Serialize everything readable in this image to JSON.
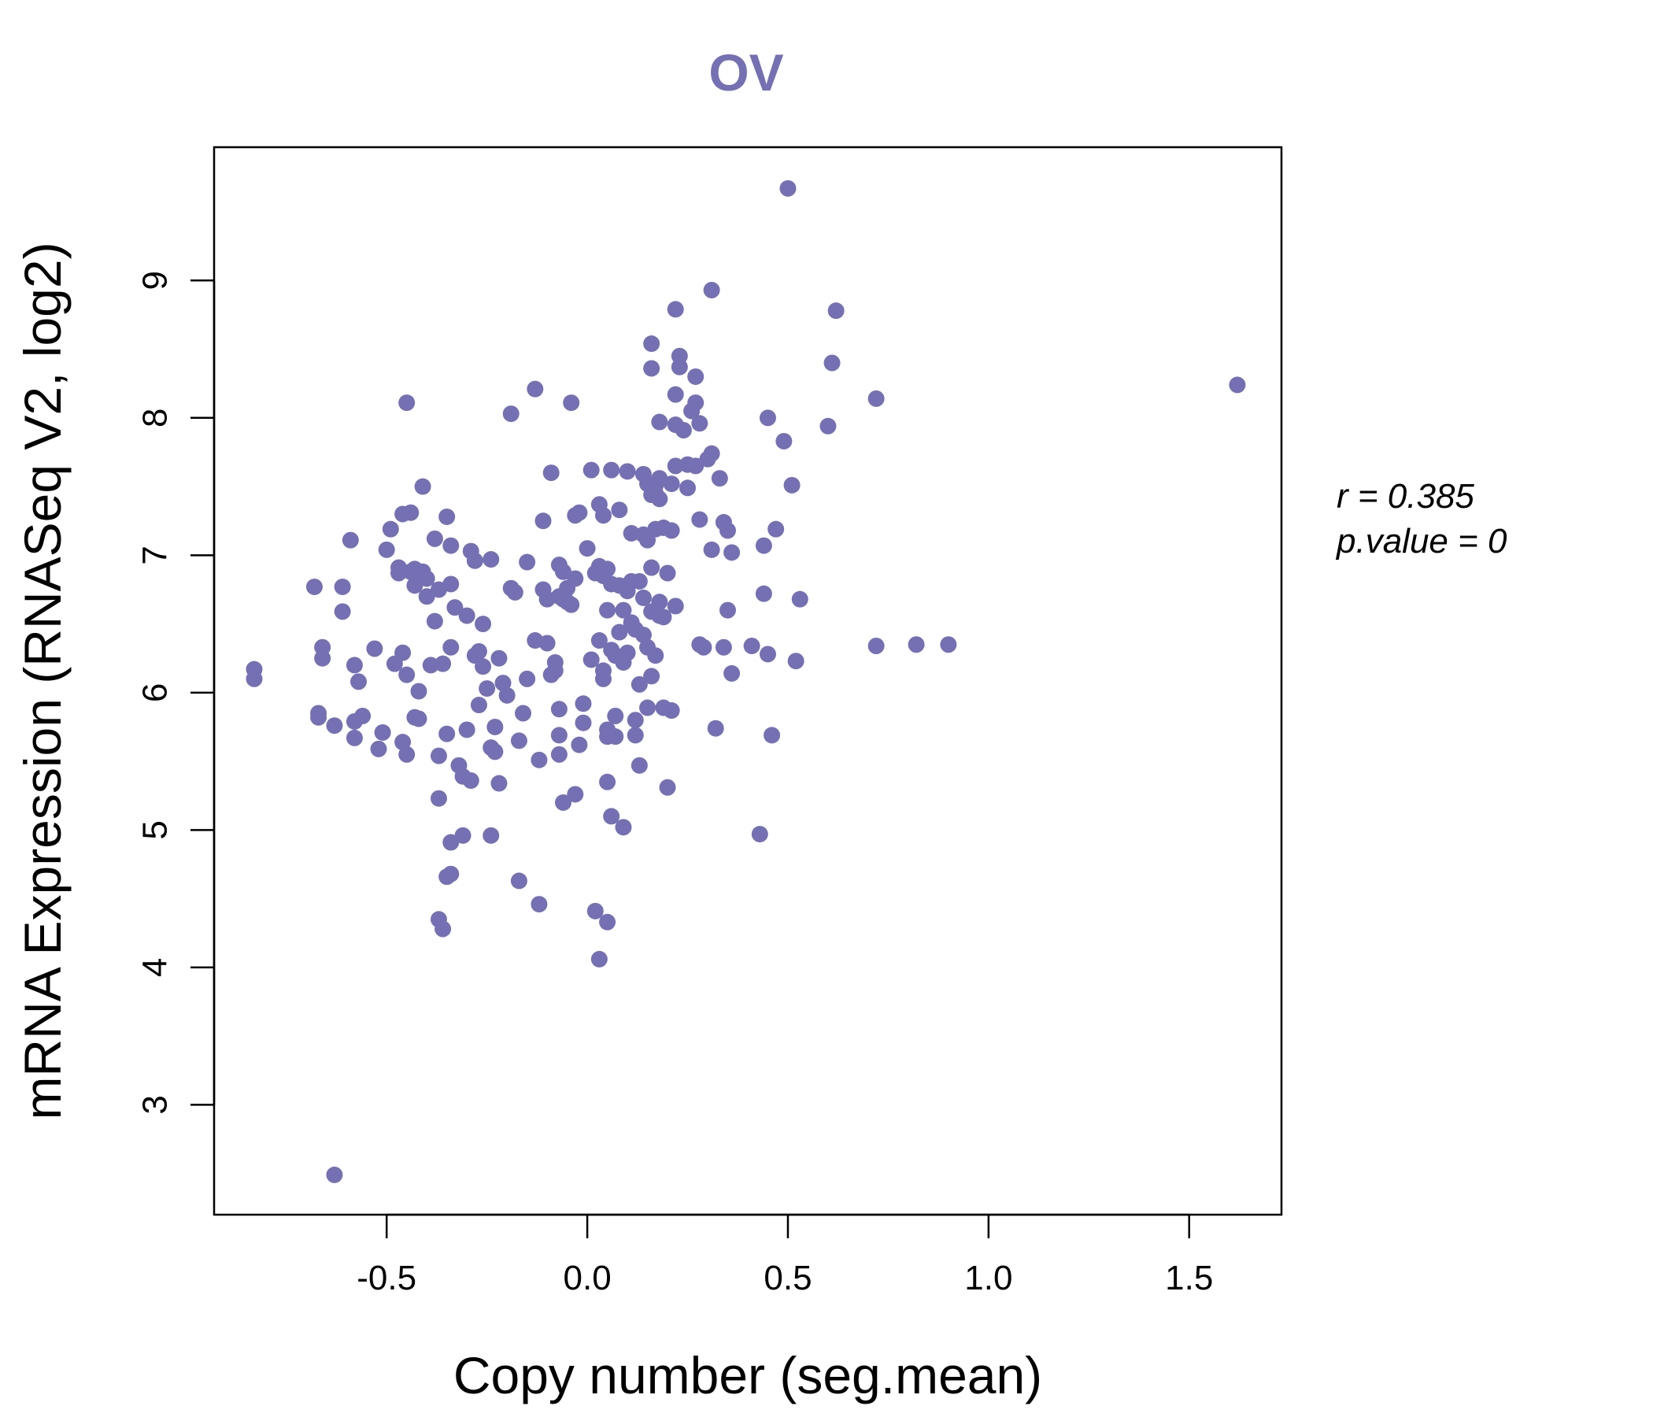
{
  "chart_data": {
    "type": "scatter",
    "title": "OV",
    "xlabel": "Copy number (seg.mean)",
    "ylabel": "mRNA Expression (RNASeq V2, log2)",
    "xlim": [
      -0.93,
      1.73
    ],
    "ylim": [
      2.2,
      9.97
    ],
    "xticks": [
      -0.5,
      0.0,
      0.5,
      1.0,
      1.5
    ],
    "xtick_labels": [
      "-0.5",
      "0.0",
      "0.5",
      "1.0",
      "1.5"
    ],
    "yticks": [
      3,
      4,
      5,
      6,
      7,
      8,
      9
    ],
    "ytick_labels": [
      "3",
      "4",
      "5",
      "6",
      "7",
      "8",
      "9"
    ],
    "grid": false,
    "point_color": "#7570b3",
    "annotations": {
      "r_label": "r = 0.385",
      "p_label": "p.value = 0"
    },
    "points": [
      [
        -0.83,
        6.17
      ],
      [
        -0.83,
        6.1
      ],
      [
        -0.68,
        6.77
      ],
      [
        -0.67,
        5.85
      ],
      [
        -0.67,
        5.82
      ],
      [
        -0.66,
        6.33
      ],
      [
        -0.66,
        6.25
      ],
      [
        -0.63,
        5.76
      ],
      [
        -0.63,
        2.49
      ],
      [
        -0.61,
        6.77
      ],
      [
        -0.61,
        6.59
      ],
      [
        -0.59,
        7.11
      ],
      [
        -0.58,
        5.79
      ],
      [
        -0.58,
        5.67
      ],
      [
        -0.58,
        6.2
      ],
      [
        -0.57,
        6.08
      ],
      [
        -0.56,
        5.83
      ],
      [
        -0.53,
        6.32
      ],
      [
        -0.52,
        5.59
      ],
      [
        -0.51,
        5.71
      ],
      [
        -0.5,
        7.04
      ],
      [
        -0.49,
        7.19
      ],
      [
        -0.48,
        6.21
      ],
      [
        -0.47,
        6.91
      ],
      [
        -0.47,
        6.87
      ],
      [
        -0.46,
        7.3
      ],
      [
        -0.46,
        5.64
      ],
      [
        -0.46,
        6.29
      ],
      [
        -0.45,
        6.13
      ],
      [
        -0.45,
        5.55
      ],
      [
        -0.45,
        8.11
      ],
      [
        -0.44,
        7.31
      ],
      [
        -0.44,
        6.88
      ],
      [
        -0.43,
        6.9
      ],
      [
        -0.43,
        6.78
      ],
      [
        -0.43,
        5.82
      ],
      [
        -0.42,
        5.81
      ],
      [
        -0.42,
        6.01
      ],
      [
        -0.41,
        6.88
      ],
      [
        -0.41,
        6.85
      ],
      [
        -0.41,
        7.5
      ],
      [
        -0.4,
        6.83
      ],
      [
        -0.4,
        6.7
      ],
      [
        -0.39,
        6.2
      ],
      [
        -0.38,
        6.52
      ],
      [
        -0.38,
        7.12
      ],
      [
        -0.37,
        6.75
      ],
      [
        -0.37,
        5.54
      ],
      [
        -0.37,
        5.23
      ],
      [
        -0.37,
        4.35
      ],
      [
        -0.36,
        4.28
      ],
      [
        -0.36,
        6.21
      ],
      [
        -0.35,
        5.7
      ],
      [
        -0.35,
        7.28
      ],
      [
        -0.35,
        4.66
      ],
      [
        -0.34,
        4.91
      ],
      [
        -0.34,
        6.79
      ],
      [
        -0.34,
        4.68
      ],
      [
        -0.34,
        6.33
      ],
      [
        -0.34,
        7.07
      ],
      [
        -0.33,
        6.62
      ],
      [
        -0.32,
        5.47
      ],
      [
        -0.31,
        5.39
      ],
      [
        -0.31,
        4.96
      ],
      [
        -0.3,
        5.73
      ],
      [
        -0.3,
        6.56
      ],
      [
        -0.29,
        7.03
      ],
      [
        -0.29,
        5.36
      ],
      [
        -0.28,
        6.27
      ],
      [
        -0.28,
        6.96
      ],
      [
        -0.27,
        5.91
      ],
      [
        -0.27,
        6.3
      ],
      [
        -0.26,
        6.19
      ],
      [
        -0.26,
        6.5
      ],
      [
        -0.25,
        6.03
      ],
      [
        -0.24,
        5.6
      ],
      [
        -0.24,
        6.97
      ],
      [
        -0.24,
        4.96
      ],
      [
        -0.23,
        5.75
      ],
      [
        -0.23,
        5.57
      ],
      [
        -0.22,
        6.25
      ],
      [
        -0.22,
        5.34
      ],
      [
        -0.21,
        6.07
      ],
      [
        -0.2,
        5.98
      ],
      [
        -0.19,
        6.76
      ],
      [
        -0.19,
        8.03
      ],
      [
        -0.18,
        6.73
      ],
      [
        -0.17,
        5.65
      ],
      [
        -0.17,
        4.63
      ],
      [
        -0.16,
        5.85
      ],
      [
        -0.15,
        6.95
      ],
      [
        -0.15,
        6.1
      ],
      [
        -0.13,
        6.38
      ],
      [
        -0.13,
        8.21
      ],
      [
        -0.12,
        5.51
      ],
      [
        -0.12,
        4.46
      ],
      [
        -0.11,
        7.25
      ],
      [
        -0.11,
        6.75
      ],
      [
        -0.1,
        6.68
      ],
      [
        -0.1,
        6.36
      ],
      [
        -0.09,
        6.13
      ],
      [
        -0.09,
        7.6
      ],
      [
        -0.08,
        6.16
      ],
      [
        -0.08,
        6.22
      ],
      [
        -0.07,
        6.93
      ],
      [
        -0.07,
        6.7
      ],
      [
        -0.07,
        5.88
      ],
      [
        -0.07,
        5.69
      ],
      [
        -0.07,
        5.55
      ],
      [
        -0.06,
        5.2
      ],
      [
        -0.06,
        6.88
      ],
      [
        -0.06,
        6.68
      ],
      [
        -0.05,
        6.76
      ],
      [
        -0.05,
        6.66
      ],
      [
        -0.04,
        8.11
      ],
      [
        -0.04,
        6.64
      ],
      [
        -0.03,
        6.83
      ],
      [
        -0.03,
        5.26
      ],
      [
        -0.03,
        7.29
      ],
      [
        -0.02,
        5.62
      ],
      [
        -0.02,
        7.31
      ],
      [
        -0.01,
        5.78
      ],
      [
        -0.01,
        5.92
      ],
      [
        0.0,
        7.05
      ],
      [
        0.01,
        7.62
      ],
      [
        0.01,
        6.24
      ],
      [
        0.02,
        4.41
      ],
      [
        0.02,
        6.87
      ],
      [
        0.03,
        4.06
      ],
      [
        0.03,
        7.37
      ],
      [
        0.03,
        6.92
      ],
      [
        0.03,
        6.38
      ],
      [
        0.04,
        6.85
      ],
      [
        0.04,
        7.29
      ],
      [
        0.04,
        6.16
      ],
      [
        0.04,
        6.1
      ],
      [
        0.05,
        4.33
      ],
      [
        0.05,
        5.73
      ],
      [
        0.05,
        5.68
      ],
      [
        0.05,
        5.35
      ],
      [
        0.05,
        6.6
      ],
      [
        0.05,
        6.9
      ],
      [
        0.06,
        6.79
      ],
      [
        0.06,
        7.62
      ],
      [
        0.06,
        5.1
      ],
      [
        0.06,
        6.31
      ],
      [
        0.07,
        5.83
      ],
      [
        0.07,
        5.68
      ],
      [
        0.07,
        6.27
      ],
      [
        0.08,
        6.78
      ],
      [
        0.08,
        7.33
      ],
      [
        0.08,
        6.44
      ],
      [
        0.09,
        6.6
      ],
      [
        0.09,
        6.22
      ],
      [
        0.09,
        5.02
      ],
      [
        0.1,
        6.74
      ],
      [
        0.1,
        7.61
      ],
      [
        0.1,
        6.29
      ],
      [
        0.11,
        6.51
      ],
      [
        0.11,
        6.81
      ],
      [
        0.11,
        7.16
      ],
      [
        0.12,
        6.46
      ],
      [
        0.12,
        5.8
      ],
      [
        0.12,
        5.69
      ],
      [
        0.13,
        5.47
      ],
      [
        0.13,
        6.06
      ],
      [
        0.13,
        6.81
      ],
      [
        0.14,
        7.59
      ],
      [
        0.14,
        7.15
      ],
      [
        0.14,
        6.69
      ],
      [
        0.14,
        6.42
      ],
      [
        0.15,
        7.11
      ],
      [
        0.15,
        6.33
      ],
      [
        0.15,
        5.89
      ],
      [
        0.15,
        7.52
      ],
      [
        0.16,
        8.54
      ],
      [
        0.16,
        8.36
      ],
      [
        0.16,
        7.44
      ],
      [
        0.16,
        6.91
      ],
      [
        0.16,
        6.59
      ],
      [
        0.16,
        6.12
      ],
      [
        0.17,
        7.51
      ],
      [
        0.17,
        7.45
      ],
      [
        0.17,
        7.19
      ],
      [
        0.17,
        6.27
      ],
      [
        0.18,
        7.97
      ],
      [
        0.18,
        7.56
      ],
      [
        0.18,
        7.41
      ],
      [
        0.18,
        6.66
      ],
      [
        0.18,
        6.56
      ],
      [
        0.19,
        7.2
      ],
      [
        0.19,
        6.55
      ],
      [
        0.19,
        5.89
      ],
      [
        0.2,
        6.87
      ],
      [
        0.2,
        5.31
      ],
      [
        0.21,
        7.52
      ],
      [
        0.21,
        7.18
      ],
      [
        0.21,
        5.87
      ],
      [
        0.22,
        8.79
      ],
      [
        0.22,
        8.17
      ],
      [
        0.22,
        7.95
      ],
      [
        0.22,
        7.65
      ],
      [
        0.22,
        6.63
      ],
      [
        0.23,
        8.45
      ],
      [
        0.23,
        8.37
      ],
      [
        0.24,
        7.91
      ],
      [
        0.25,
        7.66
      ],
      [
        0.25,
        7.49
      ],
      [
        0.26,
        8.05
      ],
      [
        0.27,
        8.3
      ],
      [
        0.27,
        8.11
      ],
      [
        0.27,
        7.65
      ],
      [
        0.28,
        7.26
      ],
      [
        0.28,
        6.35
      ],
      [
        0.28,
        7.96
      ],
      [
        0.29,
        6.33
      ],
      [
        0.3,
        7.7
      ],
      [
        0.31,
        7.74
      ],
      [
        0.31,
        8.93
      ],
      [
        0.31,
        7.04
      ],
      [
        0.32,
        5.74
      ],
      [
        0.33,
        7.56
      ],
      [
        0.34,
        6.33
      ],
      [
        0.34,
        7.24
      ],
      [
        0.35,
        7.18
      ],
      [
        0.35,
        6.6
      ],
      [
        0.36,
        7.02
      ],
      [
        0.36,
        6.14
      ],
      [
        0.41,
        6.34
      ],
      [
        0.43,
        4.97
      ],
      [
        0.44,
        7.07
      ],
      [
        0.44,
        6.72
      ],
      [
        0.45,
        6.28
      ],
      [
        0.45,
        8.0
      ],
      [
        0.46,
        5.69
      ],
      [
        0.47,
        7.19
      ],
      [
        0.49,
        7.83
      ],
      [
        0.5,
        9.67
      ],
      [
        0.51,
        7.51
      ],
      [
        0.52,
        6.23
      ],
      [
        0.53,
        6.68
      ],
      [
        0.6,
        7.94
      ],
      [
        0.61,
        8.4
      ],
      [
        0.62,
        8.78
      ],
      [
        0.72,
        6.34
      ],
      [
        0.72,
        8.14
      ],
      [
        0.82,
        6.35
      ],
      [
        0.9,
        6.35
      ],
      [
        1.62,
        8.24
      ]
    ]
  }
}
